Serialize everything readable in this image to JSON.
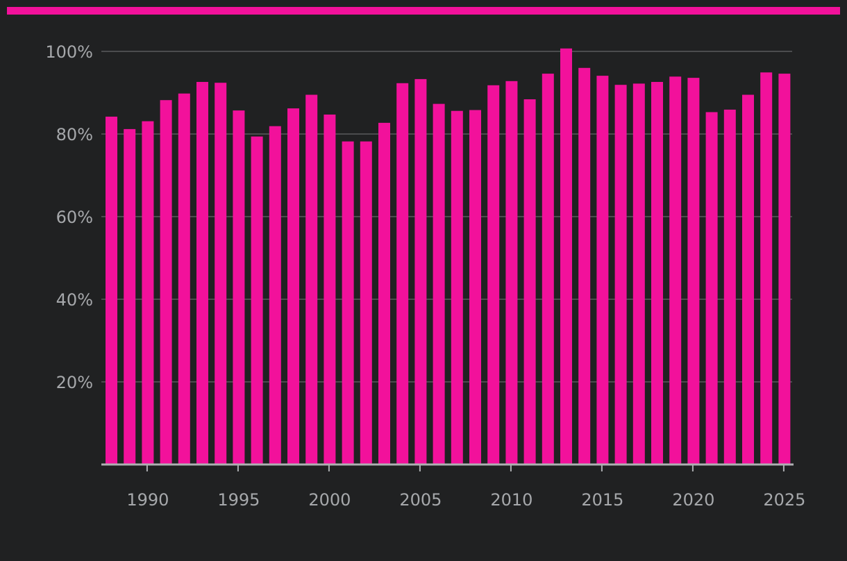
{
  "colors": {
    "background": "#202122",
    "accent": "#f2119b",
    "bar": "#f2119b",
    "grid": "#4b4c4e",
    "axis": "#aeb0b3",
    "tick_text": "#a6a8ab"
  },
  "chart_data": {
    "type": "bar",
    "title": "",
    "xlabel": "",
    "ylabel": "",
    "x": [
      1988,
      1989,
      1990,
      1991,
      1992,
      1993,
      1994,
      1995,
      1996,
      1997,
      1998,
      1999,
      2000,
      2001,
      2002,
      2003,
      2004,
      2005,
      2006,
      2007,
      2008,
      2009,
      2010,
      2011,
      2012,
      2013,
      2014,
      2015,
      2016,
      2017,
      2018,
      2019,
      2020,
      2021,
      2022,
      2023,
      2024,
      2025
    ],
    "values": [
      84.2,
      81.2,
      83.1,
      88.2,
      89.8,
      92.6,
      92.4,
      85.7,
      79.4,
      81.9,
      86.2,
      89.5,
      84.7,
      78.2,
      78.2,
      82.7,
      92.3,
      93.3,
      87.3,
      85.6,
      85.8,
      91.8,
      92.8,
      88.4,
      94.6,
      100.7,
      96.0,
      94.1,
      91.9,
      92.2,
      92.6,
      93.9,
      93.6,
      85.3,
      85.9,
      89.5,
      94.9,
      94.6
    ],
    "ylim": [
      0,
      100
    ],
    "yticks": [
      {
        "value": 20,
        "label": "20%"
      },
      {
        "value": 40,
        "label": "40%"
      },
      {
        "value": 60,
        "label": "60%"
      },
      {
        "value": 80,
        "label": "80%"
      },
      {
        "value": 100,
        "label": "100%"
      }
    ],
    "xticks": [
      {
        "value": 1990,
        "label": "1990"
      },
      {
        "value": 1995,
        "label": "1995"
      },
      {
        "value": 2000,
        "label": "2000"
      },
      {
        "value": 2005,
        "label": "2005"
      },
      {
        "value": 2010,
        "label": "2010"
      },
      {
        "value": 2015,
        "label": "2015"
      },
      {
        "value": 2020,
        "label": "2020"
      },
      {
        "value": 2025,
        "label": "2025"
      }
    ],
    "grid": true,
    "legend": "none"
  }
}
